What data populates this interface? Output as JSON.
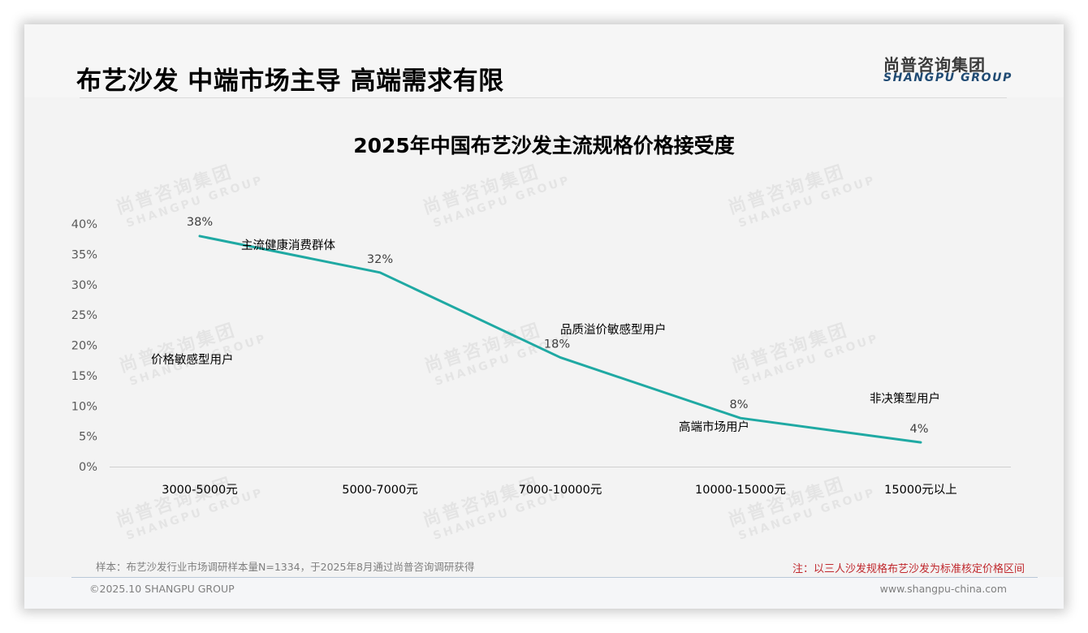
{
  "header": {
    "title": "布艺沙发 中端市场主导 高端需求有限",
    "logo_cn": "尚普咨询集团",
    "logo_en": "SHANGPU GROUP"
  },
  "watermark": {
    "cn": "尚普咨询集团",
    "en": "SHANGPU GROUP"
  },
  "chart_data": {
    "type": "line",
    "title": "2025年中国布艺沙发主流规格价格接受度",
    "xlabel": "",
    "ylabel": "",
    "categories": [
      "3000-5000元",
      "5000-7000元",
      "7000-10000元",
      "10000-15000元",
      "15000元以上"
    ],
    "series": [
      {
        "name": "价格接受度",
        "values": [
          38,
          32,
          18,
          8,
          4
        ],
        "labels": [
          "38%",
          "32%",
          "18%",
          "8%",
          "4%"
        ],
        "color": "#1fa9a3"
      }
    ],
    "y_ticks": [
      "0%",
      "5%",
      "10%",
      "15%",
      "20%",
      "25%",
      "30%",
      "35%",
      "40%"
    ],
    "ylim": [
      0,
      40
    ],
    "grid": false,
    "legend": "none",
    "annotations": [
      {
        "text": "价格敏感型用户",
        "near": "3000-5000元"
      },
      {
        "text": "主流健康消费群体",
        "near": "5000-7000元"
      },
      {
        "text": "品质溢价敏感型用户",
        "near": "7000-10000元"
      },
      {
        "text": "高端市场用户",
        "near": "10000-15000元"
      },
      {
        "text": "非决策型用户",
        "near": "15000元以上"
      }
    ]
  },
  "footer": {
    "source": "样本：布艺沙发行业市场调研样本量N=1334，于2025年8月通过尚普咨询调研获得",
    "remark": "注：以三人沙发规格布艺沙发为标准核定价格区间",
    "copyright": "©2025.10 SHANGPU GROUP",
    "website": "www.shangpu-china.com"
  }
}
